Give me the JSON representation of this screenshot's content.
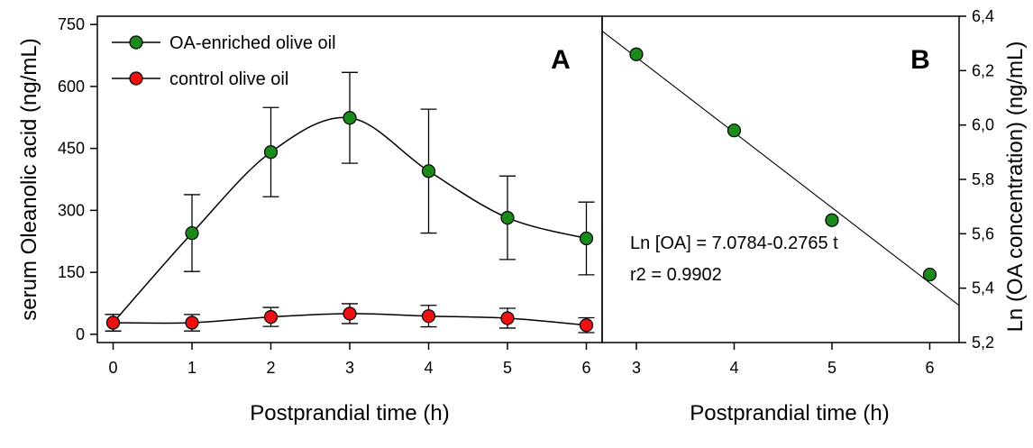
{
  "chart_data": [
    {
      "panel": "A",
      "type": "line",
      "panel_label": "A",
      "xlabel": "Postprandial time (h)",
      "ylabel": "serum Oleanolic acid  (ng/mL)",
      "xlim": [
        -0.2,
        6.2
      ],
      "ylim": [
        -20,
        770
      ],
      "xticks": [
        0,
        1,
        2,
        3,
        4,
        5,
        6
      ],
      "yticks": [
        0,
        150,
        300,
        450,
        600,
        750
      ],
      "grid": false,
      "legend": "top-left",
      "series": [
        {
          "name": "OA-enriched olive oil",
          "color": "#1a8a1a",
          "x": [
            0,
            1,
            2,
            3,
            4,
            5,
            6
          ],
          "y": [
            28,
            245,
            441,
            524,
            395,
            282,
            232
          ],
          "err": [
            20,
            93,
            108,
            110,
            150,
            101,
            88
          ]
        },
        {
          "name": "control olive oil",
          "color": "#ee1111",
          "x": [
            0,
            1,
            2,
            3,
            4,
            5,
            6
          ],
          "y": [
            28,
            28,
            42,
            50,
            44,
            39,
            22
          ],
          "err": [
            20,
            20,
            23,
            24,
            26,
            24,
            18
          ]
        }
      ]
    },
    {
      "panel": "B",
      "type": "scatter",
      "panel_label": "B",
      "xlabel": "Postprandial time (h)",
      "ylabel": "Ln (OA concentration) (ng/mL)",
      "xlim": [
        2.65,
        6.3
      ],
      "ylim": [
        5.2,
        6.4
      ],
      "xticks": [
        3,
        4,
        5,
        6
      ],
      "yticks": [
        "5,2",
        "5,4",
        "5,6",
        "5,8",
        "6,0",
        "6,2",
        "6,4"
      ],
      "ytick_values": [
        5.2,
        5.4,
        5.6,
        5.8,
        6.0,
        6.2,
        6.4
      ],
      "grid": false,
      "color": "#1a8a1a",
      "points": {
        "x": [
          3,
          4,
          5,
          6
        ],
        "y": [
          6.26,
          5.98,
          5.65,
          5.45
        ]
      },
      "fit": {
        "intercept": 7.0784,
        "slope": -0.2765,
        "x_start": 2.65,
        "x_end": 6.3
      },
      "annotations": [
        "Ln [OA] = 7.0784-0.2765 t",
        "r2 = 0.9902"
      ]
    }
  ]
}
